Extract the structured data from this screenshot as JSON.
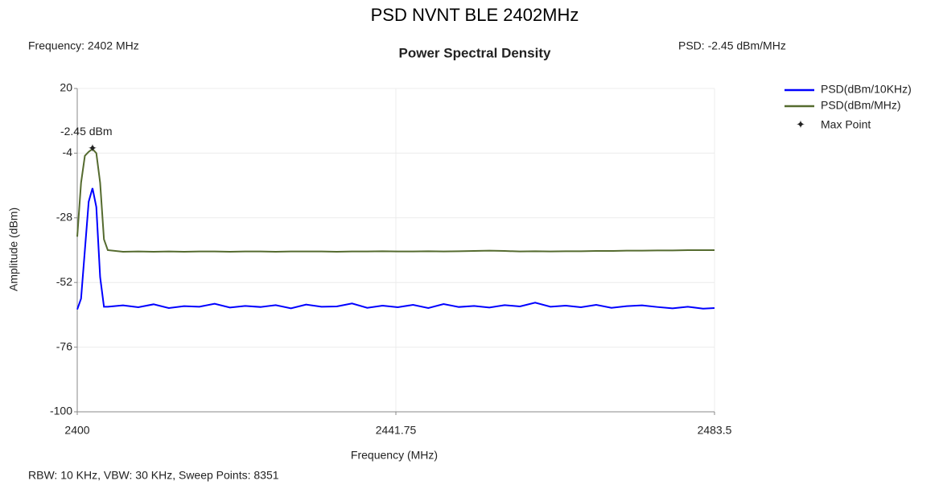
{
  "chart_data": {
    "type": "line",
    "title": "PSD NVNT BLE 2402MHz",
    "subtitle": "Power Spectral Density",
    "info_left": "Frequency: 2402 MHz",
    "info_right": "PSD: -2.45 dBm/MHz",
    "footnote": "RBW: 10 KHz,  VBW: 30 KHz,  Sweep Points: 8351",
    "x_label": "Frequency (MHz)",
    "y_label": "Amplitude (dBm)",
    "xlim": [
      2400,
      2483.5
    ],
    "xticks": [
      2400,
      2441.75,
      2483.5
    ],
    "ylim": [
      -100,
      20
    ],
    "yticks": [
      20,
      -4,
      -28,
      -52,
      -76,
      -100
    ],
    "grid": true,
    "legend": "right",
    "x": [
      2400,
      2400.5,
      2401,
      2401.5,
      2402,
      2402.5,
      2403,
      2403.5,
      2404,
      2406,
      2408,
      2410,
      2412,
      2414,
      2416,
      2418,
      2420,
      2422,
      2424,
      2426,
      2428,
      2430,
      2432,
      2434,
      2436,
      2438,
      2440,
      2442,
      2444,
      2446,
      2448,
      2450,
      2452,
      2454,
      2456,
      2458,
      2460,
      2462,
      2464,
      2466,
      2468,
      2470,
      2472,
      2474,
      2476,
      2478,
      2480,
      2482,
      2483.5
    ],
    "series": [
      {
        "name": "PSD(dBm/10KHz)",
        "color": "#0000ff",
        "values": [
          -62,
          -58,
          -40,
          -22,
          -17,
          -24,
          -50,
          -61,
          -61,
          -60.5,
          -61.2,
          -60.1,
          -61.5,
          -60.8,
          -61.0,
          -59.9,
          -61.3,
          -60.7,
          -61.1,
          -60.4,
          -61.6,
          -60.2,
          -61.0,
          -60.9,
          -59.8,
          -61.4,
          -60.6,
          -61.2,
          -60.3,
          -61.5,
          -60.0,
          -61.1,
          -60.7,
          -61.3,
          -60.4,
          -60.9,
          -59.5,
          -61.0,
          -60.6,
          -61.2,
          -60.3,
          -61.4,
          -60.8,
          -60.5,
          -61.1,
          -61.6,
          -61.0,
          -61.7,
          -61.5
        ]
      },
      {
        "name": "PSD(dBm/MHz)",
        "color": "#556b2f",
        "values": [
          -35,
          -15,
          -5,
          -3.5,
          -2.45,
          -4,
          -15,
          -36,
          -40,
          -40.6,
          -40.5,
          -40.6,
          -40.5,
          -40.6,
          -40.5,
          -40.5,
          -40.6,
          -40.5,
          -40.5,
          -40.6,
          -40.5,
          -40.5,
          -40.5,
          -40.6,
          -40.5,
          -40.5,
          -40.4,
          -40.5,
          -40.5,
          -40.4,
          -40.5,
          -40.4,
          -40.3,
          -40.2,
          -40.3,
          -40.5,
          -40.4,
          -40.5,
          -40.4,
          -40.4,
          -40.3,
          -40.3,
          -40.2,
          -40.2,
          -40.1,
          -40.1,
          -40.0,
          -40.0,
          -40.0
        ]
      }
    ],
    "max_point": {
      "name": "Max Point",
      "x": 2402,
      "y": -2.45,
      "label": "-2.45 dBm",
      "color": "#ff0000"
    }
  }
}
